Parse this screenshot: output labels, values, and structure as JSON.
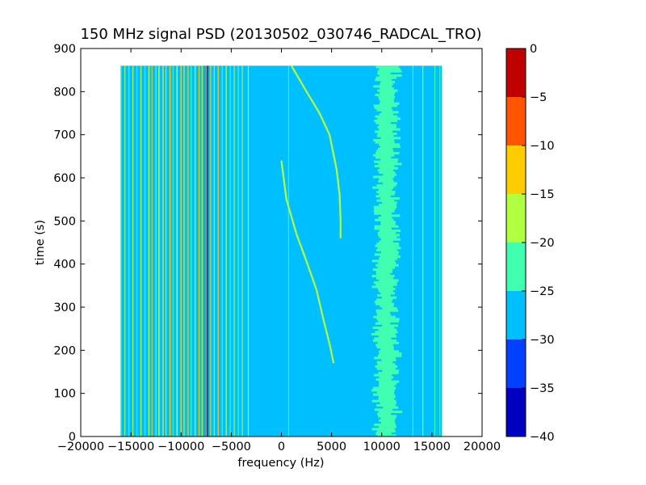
{
  "chart_data": {
    "type": "heatmap",
    "title": "150 MHz signal PSD (20130502_030746_RADCAL_TRO)",
    "xlabel": "frequency (Hz)",
    "ylabel": "time (s)",
    "xlim": [
      -20000,
      20000
    ],
    "ylim": [
      0,
      900
    ],
    "x_ticks": [
      -20000,
      -15000,
      -10000,
      -5000,
      0,
      5000,
      10000,
      15000,
      20000
    ],
    "x_tick_labels": [
      "−20000",
      "−15000",
      "−10000",
      "−5000",
      "0",
      "5000",
      "10000",
      "15000",
      "20000"
    ],
    "y_ticks": [
      0,
      100,
      200,
      300,
      400,
      500,
      600,
      700,
      800,
      900
    ],
    "y_tick_labels": [
      "0",
      "100",
      "200",
      "300",
      "400",
      "500",
      "600",
      "700",
      "800",
      "900"
    ],
    "data_extent": {
      "x": [
        -16000,
        16000
      ],
      "y": [
        0,
        860
      ]
    },
    "background_level": -27.5,
    "colorbar": {
      "levels": [
        -40,
        -35,
        -30,
        -25,
        -20,
        -15,
        -10,
        -5,
        0
      ],
      "tick_labels": [
        "−40",
        "−35",
        "−30",
        "−25",
        "−20",
        "−15",
        "−10",
        "−5",
        "0"
      ],
      "colors": [
        "#0000c0",
        "#0040ff",
        "#00bfff",
        "#40ffb0",
        "#b0ff40",
        "#ffcc00",
        "#ff5500",
        "#c00000"
      ]
    },
    "vertical_lines": [
      {
        "freq": -16000,
        "width": 120,
        "level": -22.5
      },
      {
        "freq": -15600,
        "width": 80,
        "level": -17.5
      },
      {
        "freq": -15200,
        "width": 100,
        "level": -22.5
      },
      {
        "freq": -14800,
        "width": 90,
        "level": -17.5
      },
      {
        "freq": -14400,
        "width": 70,
        "level": -22.5
      },
      {
        "freq": -14000,
        "width": 100,
        "level": -17.5
      },
      {
        "freq": -13600,
        "width": 90,
        "level": -22.5
      },
      {
        "freq": -13200,
        "width": 110,
        "level": -17.5
      },
      {
        "freq": -12900,
        "width": 80,
        "level": -12.5
      },
      {
        "freq": -12500,
        "width": 100,
        "level": -22.5
      },
      {
        "freq": -12200,
        "width": 120,
        "level": -17.5
      },
      {
        "freq": -11800,
        "width": 130,
        "level": -12.5
      },
      {
        "freq": -11500,
        "width": 90,
        "level": -17.5
      },
      {
        "freq": -11100,
        "width": 110,
        "level": -12.5
      },
      {
        "freq": -10800,
        "width": 80,
        "level": -22.5
      },
      {
        "freq": -10400,
        "width": 120,
        "level": -17.5
      },
      {
        "freq": -10000,
        "width": 110,
        "level": -12.5
      },
      {
        "freq": -9700,
        "width": 90,
        "level": -17.5
      },
      {
        "freq": -9300,
        "width": 100,
        "level": -12.5
      },
      {
        "freq": -9000,
        "width": 90,
        "level": -22.5
      },
      {
        "freq": -8600,
        "width": 110,
        "level": -17.5
      },
      {
        "freq": -8200,
        "width": 90,
        "level": -12.5
      },
      {
        "freq": -7900,
        "width": 80,
        "level": -17.5
      },
      {
        "freq": -7650,
        "width": 110,
        "level": -7.5
      },
      {
        "freq": -7350,
        "width": 130,
        "level": -2.5
      },
      {
        "freq": -7050,
        "width": 90,
        "level": -12.5
      },
      {
        "freq": -6700,
        "width": 80,
        "level": -17.5
      },
      {
        "freq": -6300,
        "width": 100,
        "level": -12.5
      },
      {
        "freq": -5900,
        "width": 90,
        "level": -22.5
      },
      {
        "freq": -5500,
        "width": 100,
        "level": -17.5
      },
      {
        "freq": -5100,
        "width": 90,
        "level": -22.5
      },
      {
        "freq": -4700,
        "width": 80,
        "level": -17.5
      },
      {
        "freq": -4300,
        "width": 90,
        "level": -22.5
      },
      {
        "freq": -3900,
        "width": 80,
        "level": -17.5
      },
      {
        "freq": -3300,
        "width": 100,
        "level": -17.5
      },
      {
        "freq": 700,
        "width": 70,
        "level": -22.5
      },
      {
        "freq": 13100,
        "width": 80,
        "level": -22.5
      },
      {
        "freq": 14100,
        "width": 90,
        "level": -17.5
      },
      {
        "freq": 15300,
        "width": 90,
        "level": -22.5
      },
      {
        "freq": 15800,
        "width": 80,
        "level": -22.5
      }
    ],
    "drift_tracks": [
      {
        "level": -17.5,
        "points": [
          [
            0,
            640
          ],
          [
            500,
            550
          ],
          [
            1500,
            470
          ],
          [
            2600,
            400
          ],
          [
            3500,
            340
          ],
          [
            4200,
            270
          ],
          [
            4800,
            215
          ],
          [
            5200,
            170
          ]
        ]
      },
      {
        "level": -17.5,
        "points": [
          [
            1000,
            860
          ],
          [
            2500,
            800
          ],
          [
            3800,
            750
          ],
          [
            4800,
            700
          ],
          [
            5500,
            620
          ],
          [
            5800,
            560
          ],
          [
            5900,
            500
          ],
          [
            5900,
            460
          ]
        ]
      }
    ],
    "noise_band": {
      "x_center": 10500,
      "x_width": 2400,
      "level": -22.5
    }
  }
}
